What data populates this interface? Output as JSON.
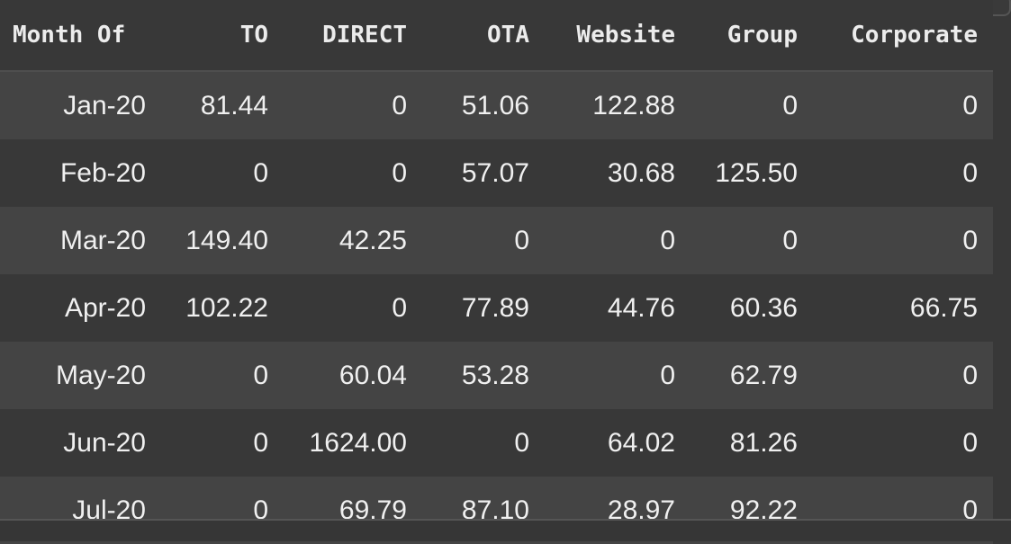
{
  "table": {
    "columns": [
      "Month Of",
      "TO",
      "DIRECT",
      "OTA",
      "Website",
      "Group",
      "Corporate"
    ],
    "rows": [
      [
        "Jan-20",
        "81.44",
        "0",
        "51.06",
        "122.88",
        "0",
        "0"
      ],
      [
        "Feb-20",
        "0",
        "0",
        "57.07",
        "30.68",
        "125.50",
        "0"
      ],
      [
        "Mar-20",
        "149.40",
        "42.25",
        "0",
        "0",
        "0",
        "0"
      ],
      [
        "Apr-20",
        "102.22",
        "0",
        "77.89",
        "44.76",
        "60.36",
        "66.75"
      ],
      [
        "May-20",
        "0",
        "60.04",
        "53.28",
        "0",
        "62.79",
        "0"
      ],
      [
        "Jun-20",
        "0",
        "1624.00",
        "0",
        "64.02",
        "81.26",
        "0"
      ],
      [
        "Jul-20",
        "0",
        "69.79",
        "87.10",
        "28.97",
        "92.22",
        "0"
      ]
    ]
  }
}
